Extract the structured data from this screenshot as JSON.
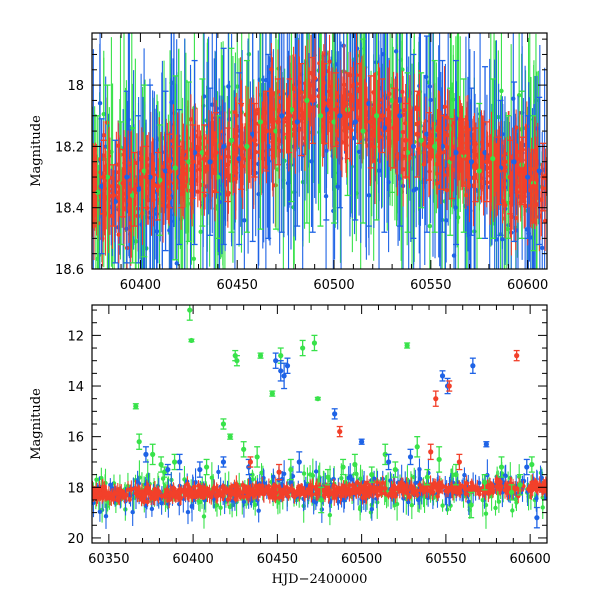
{
  "colors": {
    "green": "#38e24a",
    "blue": "#1e63e6",
    "red": "#f2402a",
    "axis": "#000000"
  },
  "chart_data": [
    {
      "type": "scatter",
      "xlabel": "",
      "ylabel": "Magnitude",
      "xlim": [
        60375,
        60610
      ],
      "ylim": [
        18.6,
        17.83
      ],
      "y_inverted": true,
      "x_ticks": [
        60400,
        60450,
        60500,
        60550,
        60600
      ],
      "y_ticks": [
        18,
        18.2,
        18.4,
        18.6
      ],
      "y_tick_labels": [
        "18",
        "18.2",
        "18.4",
        "18.6"
      ],
      "error_bars": true,
      "grid": false,
      "series": [
        {
          "color": "green",
          "x": [
            60378,
            60383,
            60390,
            60396,
            60402,
            60410,
            60418,
            60425,
            60432,
            60440,
            60447,
            60455,
            60462,
            60470,
            60478,
            60486,
            60493,
            60500,
            60507,
            60515,
            60522,
            60530,
            60538,
            60545,
            60552,
            60560,
            60567,
            60575,
            60582,
            60590,
            60597,
            60603
          ],
          "y": [
            18.35,
            18.3,
            18.32,
            18.36,
            18.28,
            18.31,
            18.27,
            18.25,
            18.22,
            18.3,
            18.18,
            18.2,
            18.12,
            18.15,
            18.08,
            18.05,
            18.1,
            18.12,
            18.08,
            18.15,
            18.1,
            18.05,
            18.22,
            18.18,
            18.2,
            18.25,
            18.23,
            18.28,
            18.24,
            18.3,
            18.26,
            18.32
          ],
          "err": [
            0.25,
            0.3,
            0.2,
            0.22,
            0.28,
            0.18,
            0.3,
            0.26,
            0.24,
            0.2,
            0.3,
            0.28,
            0.35,
            0.32,
            0.3,
            0.4,
            0.36,
            0.33,
            0.28,
            0.3,
            0.34,
            0.3,
            0.26,
            0.22,
            0.28,
            0.24,
            0.25,
            0.22,
            0.26,
            0.2,
            0.24,
            0.22
          ]
        },
        {
          "color": "blue",
          "x": [
            60380,
            60387,
            60393,
            60399,
            60405,
            60413,
            60420,
            60428,
            60436,
            60443,
            60451,
            60458,
            60466,
            60473,
            60481,
            60489,
            60496,
            60503,
            60511,
            60518,
            60526,
            60534,
            60541,
            60548,
            60556,
            60563,
            60571,
            60578,
            60586,
            60593,
            60600,
            60606
          ],
          "y": [
            18.33,
            18.38,
            18.3,
            18.34,
            18.3,
            18.28,
            18.3,
            18.22,
            18.25,
            18.2,
            18.24,
            18.16,
            18.2,
            18.1,
            18.12,
            18.06,
            18.08,
            18.1,
            18.12,
            18.06,
            18.14,
            18.1,
            18.2,
            18.16,
            18.2,
            18.22,
            18.25,
            18.22,
            18.27,
            18.25,
            18.3,
            18.28
          ],
          "err": [
            0.22,
            0.2,
            0.28,
            0.24,
            0.3,
            0.26,
            0.22,
            0.3,
            0.24,
            0.32,
            0.28,
            0.35,
            0.3,
            0.38,
            0.34,
            0.42,
            0.36,
            0.3,
            0.32,
            0.4,
            0.34,
            0.36,
            0.3,
            0.32,
            0.28,
            0.3,
            0.24,
            0.28,
            0.22,
            0.26,
            0.2,
            0.24
          ]
        },
        {
          "color": "red",
          "x": [
            60376,
            60381,
            60386,
            60391,
            60397,
            60403,
            60409,
            60415,
            60421,
            60427,
            60433,
            60439,
            60445,
            60452,
            60459,
            60465,
            60471,
            60477,
            60483,
            60489,
            60495,
            60501,
            60507,
            60513,
            60519,
            60525,
            60531,
            60537,
            60543,
            60549,
            60555,
            60561,
            60567,
            60573,
            60579,
            60585,
            60591,
            60597,
            60603,
            60608
          ],
          "y": [
            18.34,
            18.3,
            18.36,
            18.32,
            18.34,
            18.3,
            18.33,
            18.28,
            18.3,
            18.25,
            18.24,
            18.22,
            18.26,
            18.2,
            18.18,
            18.15,
            18.12,
            18.1,
            18.08,
            18.05,
            18.06,
            18.08,
            18.1,
            18.06,
            18.12,
            18.1,
            18.14,
            18.18,
            18.16,
            18.2,
            18.22,
            18.24,
            18.22,
            18.26,
            18.25,
            18.28,
            18.3,
            18.28,
            18.33,
            18.3
          ],
          "err": [
            0.1,
            0.12,
            0.1,
            0.11,
            0.12,
            0.1,
            0.11,
            0.12,
            0.1,
            0.12,
            0.11,
            0.13,
            0.12,
            0.14,
            0.12,
            0.13,
            0.14,
            0.12,
            0.15,
            0.14,
            0.13,
            0.12,
            0.14,
            0.13,
            0.15,
            0.12,
            0.13,
            0.12,
            0.14,
            0.11,
            0.12,
            0.13,
            0.11,
            0.12,
            0.13,
            0.11,
            0.12,
            0.11,
            0.12,
            0.11
          ]
        }
      ]
    },
    {
      "type": "scatter",
      "xlabel": "HJD−2400000",
      "ylabel": "Magnitude",
      "xlim": [
        60340,
        60610
      ],
      "ylim": [
        20.2,
        10.8
      ],
      "y_inverted": true,
      "x_ticks": [
        60350,
        60400,
        60450,
        60500,
        60550,
        60600
      ],
      "y_ticks": [
        12,
        14,
        16,
        18,
        20
      ],
      "y_tick_labels": [
        "12",
        "14",
        "16",
        "18",
        "20"
      ],
      "error_bars": true,
      "grid": false,
      "series": [
        {
          "color": "green",
          "x": [
            60366,
            60368,
            60376,
            60381,
            60383,
            60389,
            60398,
            60399,
            60408,
            60418,
            60422,
            60425,
            60426,
            60430,
            60438,
            60440,
            60447,
            60452,
            60458,
            60465,
            60472,
            60474,
            60476,
            60480,
            60489,
            60496,
            60506,
            60514,
            60520,
            60527,
            60533,
            60539,
            60546,
            60556,
            60565,
            60573,
            60583,
            60589,
            60594,
            60601
          ],
          "y": [
            14.8,
            16.2,
            16.7,
            17.1,
            17.4,
            17.0,
            11.0,
            12.2,
            17.2,
            15.5,
            16.0,
            12.8,
            13.0,
            16.5,
            16.8,
            12.8,
            14.3,
            12.8,
            17.3,
            12.5,
            12.3,
            14.5,
            18.5,
            17.6,
            17.2,
            17.1,
            17.5,
            16.7,
            17.3,
            12.4,
            16.4,
            17.6,
            16.9,
            17.5,
            18.7,
            17.8,
            17.2,
            18.2,
            17.9,
            17.1
          ],
          "err": [
            0.1,
            0.3,
            0.4,
            0.3,
            0.2,
            0.3,
            0.4,
            0.05,
            0.3,
            0.2,
            0.1,
            0.2,
            0.2,
            0.3,
            0.4,
            0.1,
            0.1,
            0.3,
            0.4,
            0.3,
            0.3,
            0.05,
            0.5,
            0.3,
            0.3,
            0.4,
            0.3,
            0.4,
            0.3,
            0.1,
            0.4,
            0.3,
            0.5,
            0.4,
            0.5,
            0.3,
            0.4,
            0.3,
            0.4,
            0.3
          ]
        },
        {
          "color": "blue",
          "x": [
            60372,
            60385,
            60392,
            60404,
            60418,
            60433,
            60449,
            60452,
            60454,
            60456,
            60463,
            60484,
            60500,
            60516,
            60529,
            60548,
            60551,
            60566,
            60574,
            60598,
            60604
          ],
          "y": [
            16.7,
            17.3,
            17.0,
            17.3,
            17.0,
            17.2,
            13.0,
            13.4,
            13.6,
            13.2,
            17.0,
            15.1,
            16.2,
            17.0,
            16.8,
            13.6,
            14.0,
            13.2,
            16.3,
            17.2,
            19.2
          ],
          "err": [
            0.3,
            0.2,
            0.3,
            0.3,
            0.2,
            0.3,
            0.3,
            0.4,
            0.5,
            0.3,
            0.4,
            0.2,
            0.1,
            0.3,
            0.3,
            0.2,
            0.3,
            0.3,
            0.1,
            0.3,
            0.4
          ]
        },
        {
          "color": "red",
          "x": [
            60434,
            60451,
            60487,
            60541,
            60544,
            60552,
            60558,
            60592
          ],
          "y": [
            17.0,
            17.4,
            15.8,
            16.6,
            14.5,
            14.0,
            17.0,
            12.8
          ],
          "err": [
            0.2,
            0.3,
            0.2,
            0.3,
            0.3,
            0.2,
            0.3,
            0.2
          ]
        }
      ]
    }
  ]
}
